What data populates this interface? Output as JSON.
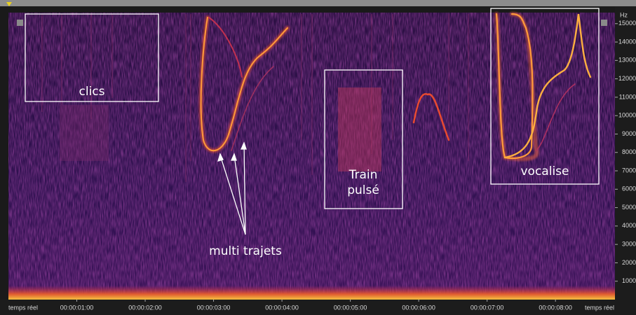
{
  "chart_data": {
    "type": "spectrogram",
    "y_unit": "Hz",
    "ylim": [
      0,
      15600
    ],
    "yticks": [
      1000,
      2000,
      3000,
      4000,
      5000,
      6000,
      7000,
      8000,
      9000,
      10000,
      11000,
      12000,
      13000,
      14000,
      15000
    ],
    "xlim": [
      0,
      8.87
    ],
    "xticks": [
      {
        "value": 1,
        "label": "00:00:01:00"
      },
      {
        "value": 2,
        "label": "00:00:02:00"
      },
      {
        "value": 3,
        "label": "00:00:03:00"
      },
      {
        "value": 4,
        "label": "00:00:04:00"
      },
      {
        "value": 5,
        "label": "00:00:05:00"
      },
      {
        "value": 6,
        "label": "00:00:06:00"
      },
      {
        "value": 7,
        "label": "00:00:07:00"
      },
      {
        "value": 8,
        "label": "00:00:08:00"
      }
    ],
    "x_edge_labels": [
      "temps réel",
      "temps réel"
    ],
    "annotations": [
      "clics",
      "multi trajets",
      "Train pulsé",
      "vocalise"
    ]
  }
}
